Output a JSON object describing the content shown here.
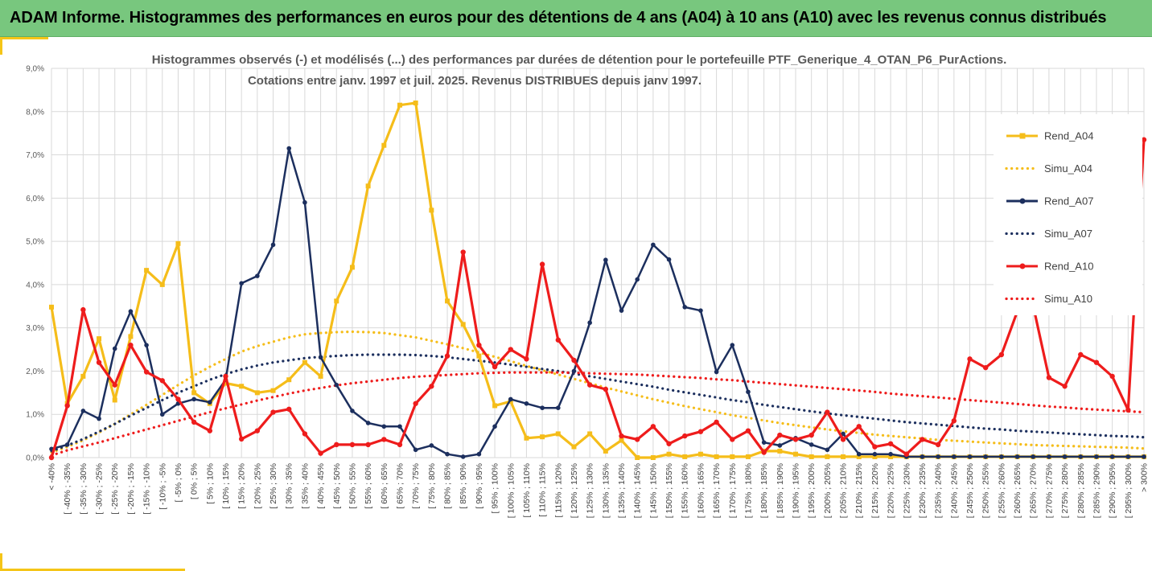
{
  "banner": {
    "title": "ADAM Informe. Histogrammes des performances en euros pour des détentions de 4 ans (A04) à 10 ans (A10) avec les revenus connus distribués"
  },
  "colors": {
    "banner_bg": "#78c77e",
    "accent": "#f5c518",
    "A04": "#f5bd1a",
    "A07": "#1c2f5e",
    "A10": "#ee1c1c"
  },
  "chart_data": {
    "type": "line",
    "title": [
      "Histogrammes observés (-) et modélisés (...) des performances par durées de détention pour le portefeuille PTF_Generique_4_OTAN_P6_PurActions.",
      "Cotations entre janv. 1997 et juil. 2025. Revenus DISTRIBUES depuis janv 1997."
    ],
    "xlabel": "",
    "ylabel": "",
    "ylim": [
      0,
      9
    ],
    "y_ticks": [
      "0,0%",
      "1,0%",
      "2,0%",
      "3,0%",
      "4,0%",
      "5,0%",
      "6,0%",
      "7,0%",
      "8,0%",
      "9,0%"
    ],
    "grid": true,
    "legend_position": "right",
    "categories": [
      "< -40%",
      "[ -40% ; -35%",
      "[ -35% ; -30%",
      "[ -30% ; -25%",
      "[ -25% ; -20%",
      "[ -20% ; -15%",
      "[ -15% ; -10%",
      "[ -10% ; -5%",
      "[ -5% ; 0%",
      "[ 0% ; 5%",
      "[ 5% ; 10%",
      "[ 10% ; 15%",
      "[ 15% ; 20%",
      "[ 20% ; 25%",
      "[ 25% ; 30%",
      "[ 30% ; 35%",
      "[ 35% ; 40%",
      "[ 40% ; 45%",
      "[ 45% ; 50%",
      "[ 50% ; 55%",
      "[ 55% ; 60%",
      "[ 60% ; 65%",
      "[ 65% ; 70%",
      "[ 70% ; 75%",
      "[ 75% ; 80%",
      "[ 80% ; 85%",
      "[ 85% ; 90%",
      "[ 90% ; 95%",
      "[ 95% ; 100%",
      "[ 100% ; 105%",
      "[ 105% ; 110%",
      "[ 110% ; 115%",
      "[ 115% ; 120%",
      "[ 120% ; 125%",
      "[ 125% ; 130%",
      "[ 130% ; 135%",
      "[ 135% ; 140%",
      "[ 140% ; 145%",
      "[ 145% ; 150%",
      "[ 150% ; 155%",
      "[ 155% ; 160%",
      "[ 160% ; 165%",
      "[ 165% ; 170%",
      "[ 170% ; 175%",
      "[ 175% ; 180%",
      "[ 180% ; 185%",
      "[ 185% ; 190%",
      "[ 190% ; 195%",
      "[ 195% ; 200%",
      "[ 200% ; 205%",
      "[ 205% ; 210%",
      "[ 210% ; 215%",
      "[ 215% ; 220%",
      "[ 220% ; 225%",
      "[ 225% ; 230%",
      "[ 230% ; 235%",
      "[ 235% ; 240%",
      "[ 240% ; 245%",
      "[ 245% ; 250%",
      "[ 250% ; 255%",
      "[ 255% ; 260%",
      "[ 260% ; 265%",
      "[ 265% ; 270%",
      "[ 270% ; 275%",
      "[ 275% ; 280%",
      "[ 280% ; 285%",
      "[ 285% ; 290%",
      "[ 290% ; 295%",
      "[ 295% ; 300%",
      "> 300%"
    ],
    "series": [
      {
        "name": "Rend_A04",
        "style": "solid-marker",
        "values": [
          3.48,
          1.25,
          1.88,
          2.75,
          1.33,
          2.8,
          4.33,
          4.0,
          4.95,
          1.5,
          1.25,
          1.72,
          1.65,
          1.5,
          1.55,
          1.8,
          2.2,
          1.88,
          3.62,
          4.4,
          6.28,
          7.22,
          8.15,
          8.2,
          5.72,
          3.62,
          3.08,
          2.35,
          1.2,
          1.3,
          0.45,
          0.48,
          0.55,
          0.25,
          0.55,
          0.15,
          0.4,
          0.0,
          0.0,
          0.08,
          0.02,
          0.08,
          0.02,
          0.02,
          0.02,
          0.15,
          0.15,
          0.08,
          0.02,
          0.02,
          0.02,
          0.02,
          0.02,
          0.02,
          0.02,
          0.02,
          0.02,
          0.02,
          0.02,
          0.02,
          0.02,
          0.02,
          0.02,
          0.02,
          0.02,
          0.02,
          0.02,
          0.02,
          0.02,
          0.02
        ]
      },
      {
        "name": "Simu_A04",
        "style": "dotted",
        "values": [
          0.12,
          0.25,
          0.4,
          0.58,
          0.78,
          1.0,
          1.22,
          1.45,
          1.68,
          1.9,
          2.1,
          2.28,
          2.45,
          2.58,
          2.68,
          2.78,
          2.85,
          2.88,
          2.9,
          2.91,
          2.9,
          2.88,
          2.83,
          2.78,
          2.7,
          2.62,
          2.53,
          2.43,
          2.33,
          2.23,
          2.12,
          2.02,
          1.92,
          1.82,
          1.72,
          1.62,
          1.53,
          1.44,
          1.35,
          1.27,
          1.19,
          1.12,
          1.05,
          0.98,
          0.92,
          0.86,
          0.8,
          0.75,
          0.7,
          0.65,
          0.61,
          0.57,
          0.53,
          0.5,
          0.47,
          0.44,
          0.41,
          0.39,
          0.37,
          0.35,
          0.33,
          0.31,
          0.29,
          0.28,
          0.27,
          0.26,
          0.25,
          0.24,
          0.23,
          0.21
        ]
      },
      {
        "name": "Rend_A07",
        "style": "solid-marker",
        "values": [
          0.2,
          0.3,
          1.08,
          0.9,
          2.52,
          3.38,
          2.6,
          1.0,
          1.25,
          1.35,
          1.28,
          1.8,
          4.03,
          4.2,
          4.92,
          7.15,
          5.9,
          2.32,
          1.68,
          1.08,
          0.8,
          0.72,
          0.72,
          0.18,
          0.28,
          0.08,
          0.02,
          0.08,
          0.72,
          1.35,
          1.25,
          1.15,
          1.15,
          2.0,
          3.12,
          4.57,
          3.4,
          4.12,
          4.92,
          4.58,
          3.48,
          3.4,
          1.98,
          2.6,
          1.52,
          0.35,
          0.28,
          0.45,
          0.3,
          0.18,
          0.55,
          0.08,
          0.08,
          0.08,
          0.02,
          0.02,
          0.02,
          0.02,
          0.02,
          0.02,
          0.02,
          0.02,
          0.02,
          0.02,
          0.02,
          0.02,
          0.02,
          0.02,
          0.02,
          0.02
        ]
      },
      {
        "name": "Simu_A07",
        "style": "dotted",
        "values": [
          0.15,
          0.28,
          0.43,
          0.6,
          0.78,
          0.97,
          1.15,
          1.33,
          1.5,
          1.65,
          1.8,
          1.93,
          2.04,
          2.13,
          2.2,
          2.25,
          2.3,
          2.33,
          2.35,
          2.37,
          2.38,
          2.38,
          2.38,
          2.37,
          2.35,
          2.32,
          2.28,
          2.24,
          2.2,
          2.15,
          2.1,
          2.05,
          2.0,
          1.94,
          1.88,
          1.82,
          1.76,
          1.7,
          1.64,
          1.57,
          1.51,
          1.45,
          1.39,
          1.33,
          1.28,
          1.22,
          1.17,
          1.12,
          1.07,
          1.02,
          0.98,
          0.94,
          0.9,
          0.86,
          0.82,
          0.79,
          0.76,
          0.73,
          0.7,
          0.67,
          0.65,
          0.62,
          0.6,
          0.58,
          0.56,
          0.54,
          0.52,
          0.5,
          0.49,
          0.47
        ]
      },
      {
        "name": "Rend_A10",
        "style": "solid-marker",
        "values": [
          0.0,
          1.2,
          3.42,
          2.2,
          1.68,
          2.6,
          1.98,
          1.78,
          1.35,
          0.82,
          0.62,
          1.88,
          0.43,
          0.62,
          1.05,
          1.12,
          0.55,
          0.1,
          0.3,
          0.3,
          0.3,
          0.42,
          0.3,
          1.25,
          1.65,
          2.35,
          4.75,
          2.6,
          2.1,
          2.5,
          2.28,
          4.47,
          2.72,
          2.25,
          1.68,
          1.58,
          0.5,
          0.42,
          0.72,
          0.32,
          0.5,
          0.6,
          0.82,
          0.42,
          0.62,
          0.12,
          0.52,
          0.42,
          0.52,
          1.05,
          0.42,
          0.72,
          0.25,
          0.32,
          0.08,
          0.42,
          0.3,
          0.85,
          2.28,
          2.08,
          2.38,
          3.38,
          3.52,
          1.85,
          1.65,
          2.38,
          2.2,
          1.88,
          1.1,
          7.35
        ]
      },
      {
        "name": "Simu_A10",
        "style": "dotted",
        "values": [
          0.05,
          0.17,
          0.26,
          0.35,
          0.45,
          0.55,
          0.65,
          0.75,
          0.85,
          0.95,
          1.05,
          1.14,
          1.23,
          1.32,
          1.4,
          1.48,
          1.55,
          1.61,
          1.67,
          1.72,
          1.76,
          1.8,
          1.84,
          1.87,
          1.89,
          1.91,
          1.93,
          1.95,
          1.96,
          1.97,
          1.97,
          1.97,
          1.97,
          1.96,
          1.95,
          1.94,
          1.93,
          1.92,
          1.9,
          1.88,
          1.86,
          1.84,
          1.81,
          1.79,
          1.76,
          1.73,
          1.7,
          1.67,
          1.64,
          1.61,
          1.58,
          1.55,
          1.52,
          1.48,
          1.45,
          1.42,
          1.39,
          1.36,
          1.33,
          1.3,
          1.27,
          1.24,
          1.21,
          1.18,
          1.16,
          1.13,
          1.11,
          1.09,
          1.07,
          1.05
        ]
      }
    ]
  }
}
